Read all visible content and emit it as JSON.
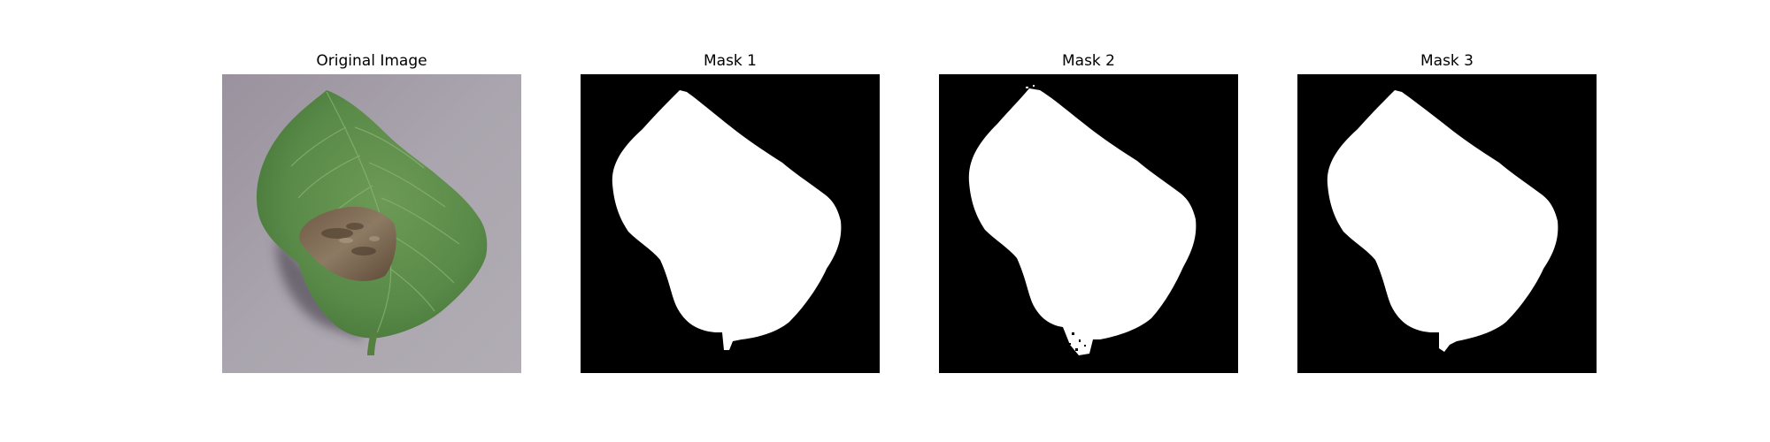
{
  "figure": {
    "panels": [
      {
        "title": "Original Image",
        "kind": "photo",
        "subject": "leaf-with-blight-lesion"
      },
      {
        "title": "Mask 1",
        "kind": "segmentation-mask"
      },
      {
        "title": "Mask 2",
        "kind": "segmentation-mask"
      },
      {
        "title": "Mask 3",
        "kind": "segmentation-mask"
      }
    ]
  },
  "colors": {
    "background": "#ffffff",
    "mask_foreground": "#ffffff",
    "mask_background": "#000000",
    "leaf_green": "#5e8f4c",
    "lesion_brown": "#7a6650",
    "surface_gray": "#a39ea8"
  }
}
